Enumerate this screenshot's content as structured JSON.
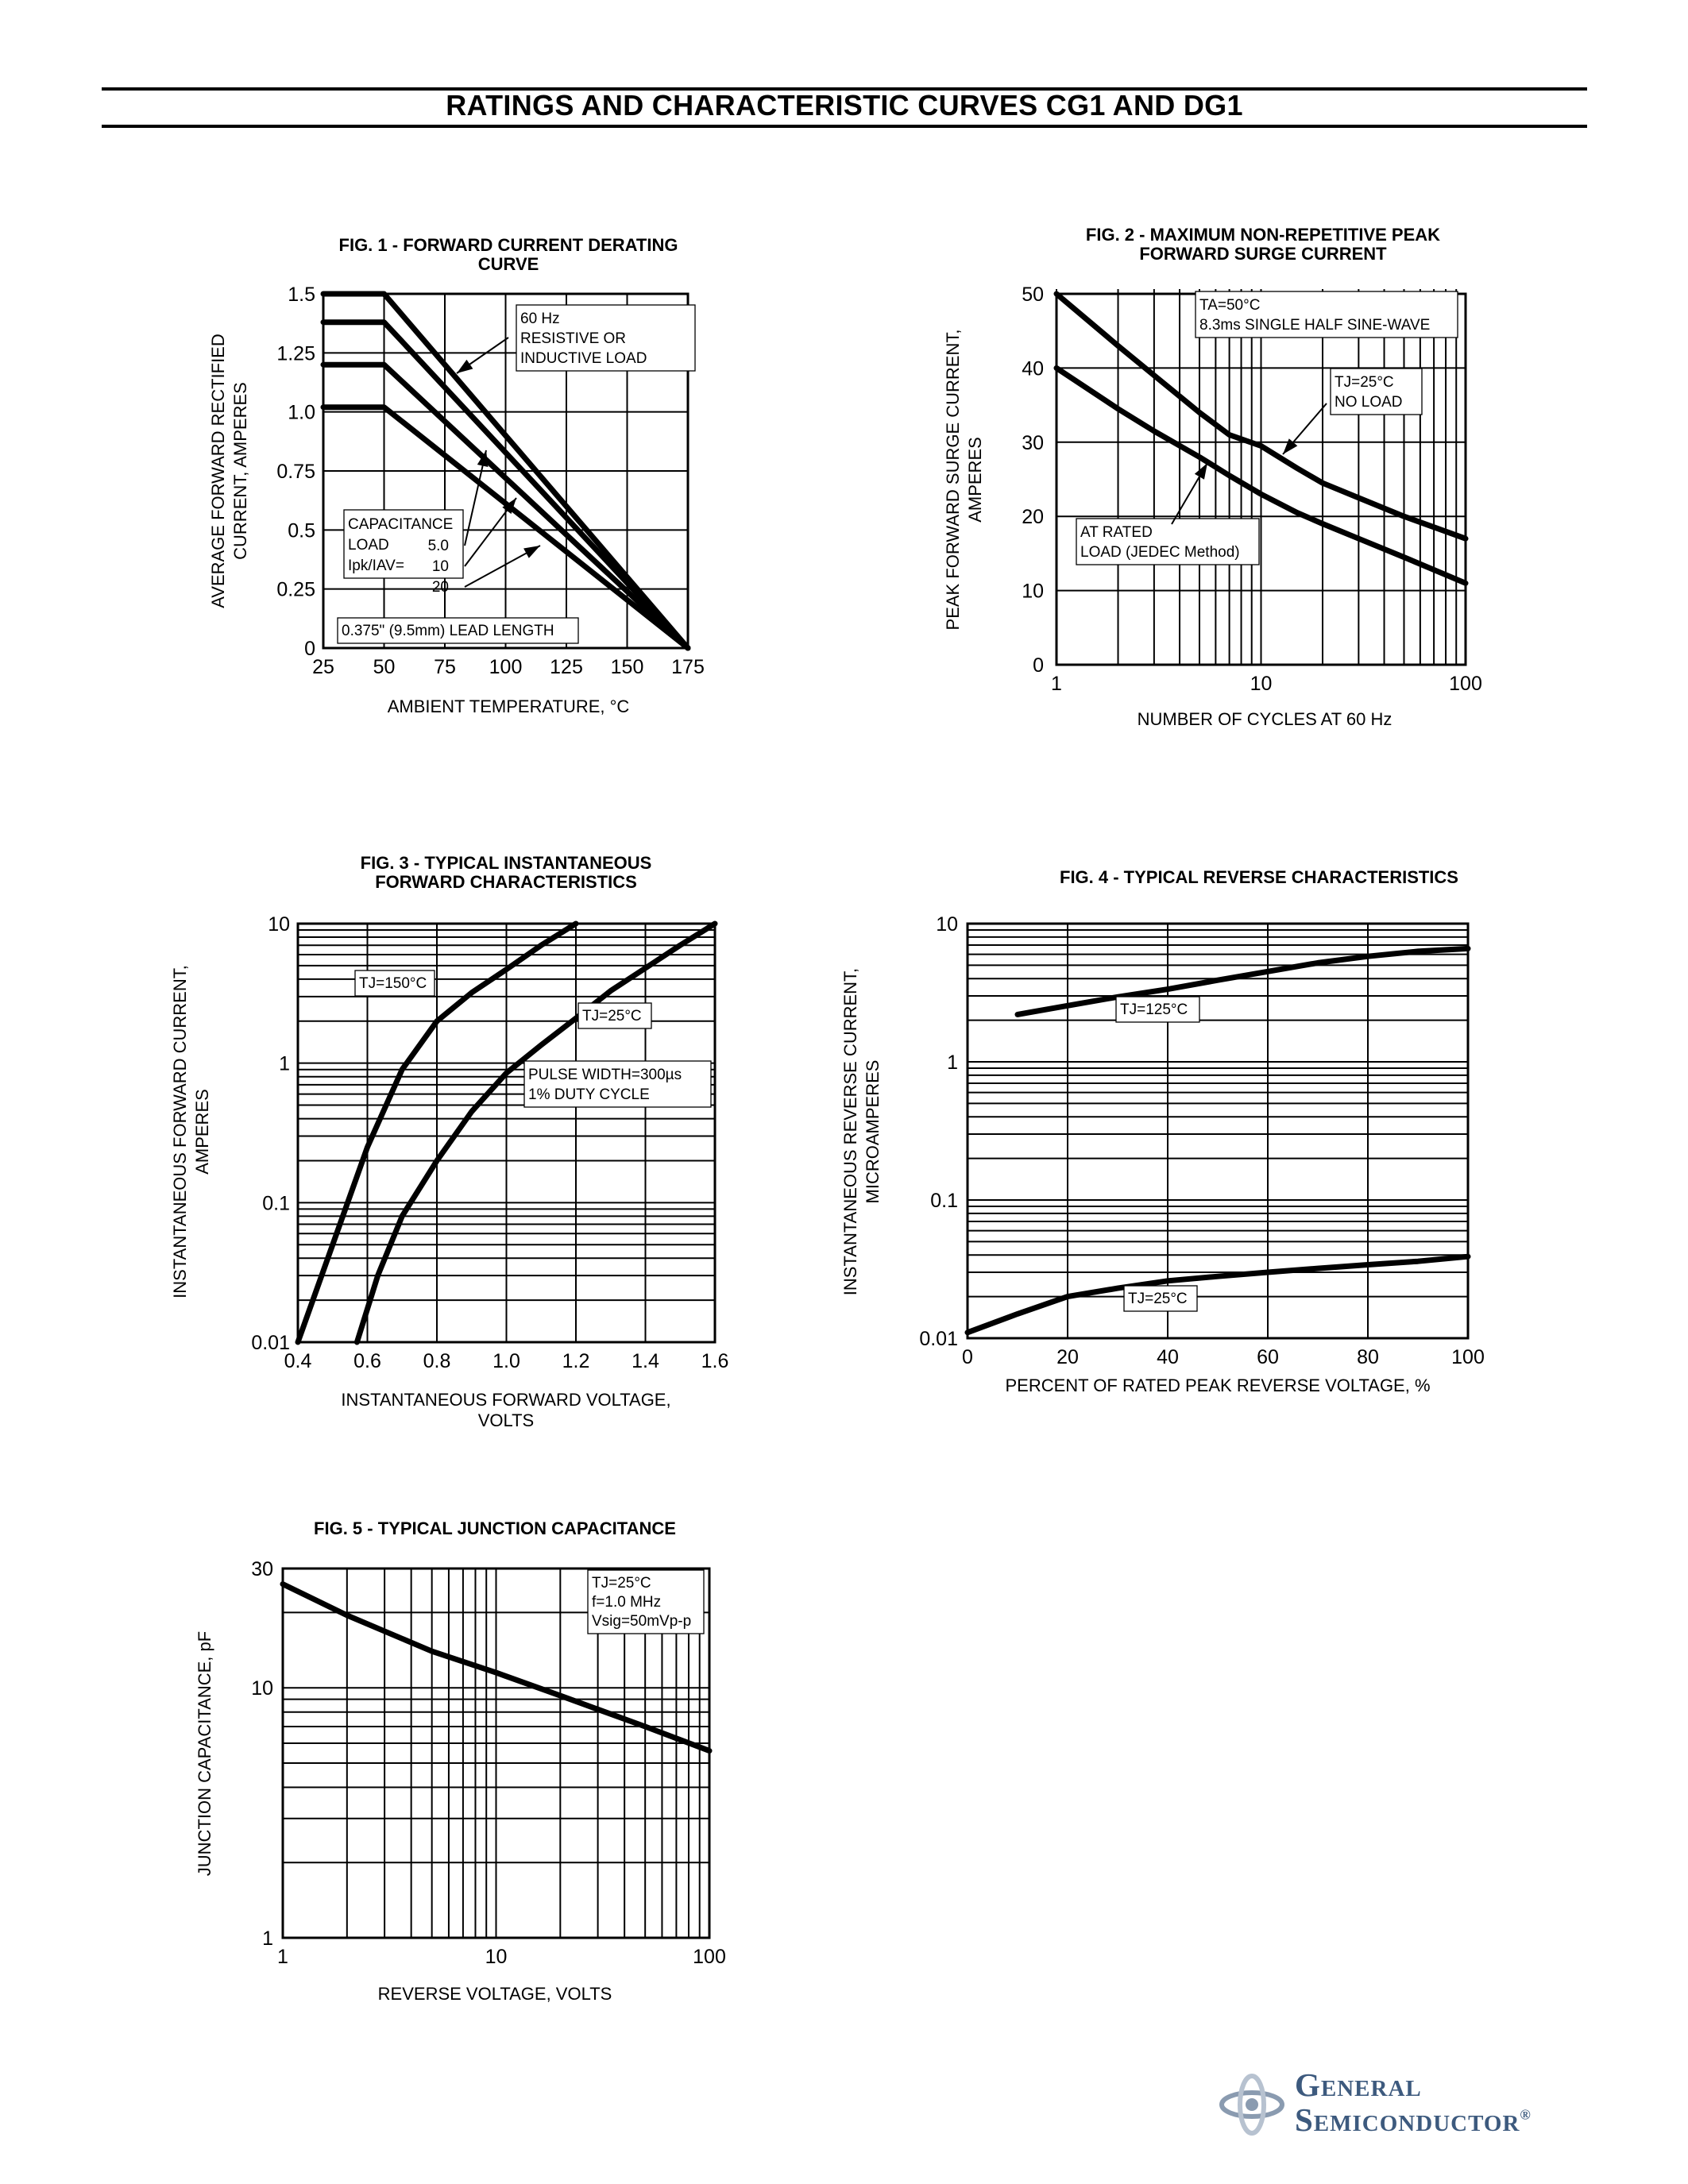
{
  "page_title": "RATINGS AND CHARACTERISTIC CURVES CG1 AND DG1",
  "brand": {
    "line1": "General",
    "line2": "Semiconductor",
    "reg": "®",
    "color": "#3d5a7e"
  },
  "chart_data": [
    {
      "id": "fig1",
      "type": "line",
      "title": [
        "FIG. 1 - FORWARD CURRENT DERATING",
        "CURVE"
      ],
      "xlabel": "AMBIENT TEMPERATURE, °C",
      "ylabel": [
        "AVERAGE FORWARD RECTIFIED",
        "CURRENT, AMPERES"
      ],
      "xlim": [
        25,
        175
      ],
      "ylim": [
        0,
        1.5
      ],
      "xscale": "linear",
      "yscale": "linear",
      "x_ticks": [
        "25",
        "50",
        "75",
        "100",
        "125",
        "150",
        "175"
      ],
      "y_ticks": [
        "0",
        "0.25",
        "0.5",
        "0.75",
        "1.0",
        "1.25",
        "1.5"
      ],
      "grid": true,
      "series": [
        {
          "x": [
            25,
            50,
            175
          ],
          "y": [
            1.5,
            1.5,
            0
          ]
        },
        {
          "x": [
            25,
            50,
            175
          ],
          "y": [
            1.38,
            1.38,
            0
          ]
        },
        {
          "x": [
            25,
            50,
            175
          ],
          "y": [
            1.2,
            1.2,
            0
          ]
        },
        {
          "x": [
            25,
            50,
            175
          ],
          "y": [
            1.02,
            1.02,
            0
          ]
        }
      ],
      "annotations": [
        {
          "lines": [
            "60 Hz",
            "RESISTIVE OR",
            "INDUCTIVE LOAD"
          ]
        },
        {
          "lines": [
            "CAPACITANCE",
            "LOAD",
            "Ipk/IAV="
          ]
        },
        {
          "lines": [
            "5.0",
            "10",
            "20"
          ]
        },
        {
          "lines": [
            "0.375\" (9.5mm) LEAD LENGTH"
          ]
        }
      ]
    },
    {
      "id": "fig2",
      "type": "line",
      "title": [
        "FIG. 2 - MAXIMUM NON-REPETITIVE PEAK",
        "FORWARD SURGE CURRENT"
      ],
      "xlabel": "NUMBER OF CYCLES AT 60 Hz",
      "ylabel": [
        "PEAK FORWARD SURGE CURRENT,",
        "AMPERES"
      ],
      "xlim": [
        1,
        100
      ],
      "ylim": [
        0,
        50
      ],
      "xscale": "log",
      "yscale": "linear",
      "x_ticks": [
        "1",
        "10",
        "100"
      ],
      "y_ticks": [
        "0",
        "10",
        "20",
        "30",
        "40",
        "50"
      ],
      "grid": true,
      "series": [
        {
          "x": [
            1,
            2,
            3,
            5,
            7,
            10,
            15,
            20,
            30,
            50,
            100
          ],
          "y": [
            50,
            43,
            39,
            34,
            31,
            29.5,
            26.5,
            24.5,
            22.5,
            20,
            17
          ]
        },
        {
          "x": [
            1,
            2,
            3,
            5,
            7,
            10,
            15,
            20,
            30,
            50,
            100
          ],
          "y": [
            40,
            34.5,
            31.5,
            28,
            25.5,
            23,
            20.5,
            19,
            17,
            14.5,
            11
          ]
        }
      ],
      "annotations": [
        {
          "lines": [
            "TA=50°C",
            "8.3ms SINGLE HALF SINE-WAVE"
          ]
        },
        {
          "lines": [
            "TJ=25°C",
            "NO LOAD"
          ]
        },
        {
          "lines": [
            "AT RATED",
            "LOAD (JEDEC Method)"
          ]
        }
      ]
    },
    {
      "id": "fig3",
      "type": "line",
      "title": [
        "FIG. 3 - TYPICAL INSTANTANEOUS",
        "FORWARD CHARACTERISTICS"
      ],
      "xlabel": [
        "INSTANTANEOUS FORWARD VOLTAGE,",
        "VOLTS"
      ],
      "ylabel": [
        "INSTANTANEOUS FORWARD CURRENT,",
        "AMPERES"
      ],
      "xlim": [
        0.4,
        1.6
      ],
      "ylim": [
        0.01,
        10
      ],
      "xscale": "linear",
      "yscale": "log",
      "x_ticks": [
        "0.4",
        "0.6",
        "0.8",
        "1.0",
        "1.2",
        "1.4",
        "1.6"
      ],
      "y_ticks": [
        "0.01",
        "0.1",
        "1",
        "10"
      ],
      "grid": true,
      "series": [
        {
          "name": "TJ=150°C",
          "x": [
            0.4,
            0.5,
            0.6,
            0.7,
            0.8,
            0.9,
            1.0,
            1.1,
            1.2
          ],
          "y": [
            0.01,
            0.05,
            0.25,
            0.9,
            2.0,
            3.2,
            4.7,
            7.0,
            10
          ]
        },
        {
          "name": "TJ=25°C",
          "x": [
            0.57,
            0.63,
            0.7,
            0.8,
            0.9,
            1.0,
            1.1,
            1.2,
            1.3,
            1.4,
            1.5,
            1.6
          ],
          "y": [
            0.01,
            0.03,
            0.08,
            0.2,
            0.45,
            0.85,
            1.35,
            2.1,
            3.3,
            4.8,
            7.0,
            10
          ]
        }
      ],
      "annotations": [
        {
          "lines": [
            "PULSE WIDTH=300µs",
            "1% DUTY CYCLE"
          ]
        }
      ]
    },
    {
      "id": "fig4",
      "type": "line",
      "title": [
        "FIG. 4 - TYPICAL REVERSE CHARACTERISTICS"
      ],
      "xlabel": "PERCENT OF RATED PEAK REVERSE VOLTAGE, %",
      "ylabel": [
        "INSTANTANEOUS REVERSE CURRENT,",
        "MICROAMPERES"
      ],
      "xlim": [
        0,
        100
      ],
      "ylim": [
        0.01,
        10
      ],
      "xscale": "linear",
      "yscale": "log",
      "x_ticks": [
        "0",
        "20",
        "40",
        "60",
        "80",
        "100"
      ],
      "y_ticks": [
        "0.01",
        "0.1",
        "1",
        "10"
      ],
      "grid": true,
      "series": [
        {
          "name": "TJ=125°C",
          "x": [
            10,
            20,
            30,
            40,
            50,
            60,
            70,
            80,
            90,
            100
          ],
          "y": [
            2.2,
            2.55,
            2.95,
            3.35,
            3.9,
            4.5,
            5.2,
            5.8,
            6.3,
            6.6
          ]
        },
        {
          "name": "TJ=25°C",
          "x": [
            0,
            10,
            20,
            30,
            40,
            50,
            60,
            70,
            80,
            90,
            100
          ],
          "y": [
            0.011,
            0.015,
            0.02,
            0.023,
            0.026,
            0.028,
            0.03,
            0.032,
            0.034,
            0.036,
            0.039
          ]
        }
      ]
    },
    {
      "id": "fig5",
      "type": "line",
      "title": [
        "FIG. 5 - TYPICAL JUNCTION CAPACITANCE"
      ],
      "xlabel": "REVERSE VOLTAGE, VOLTS",
      "ylabel": "JUNCTION CAPACITANCE, pF",
      "xlim": [
        1,
        100
      ],
      "ylim": [
        1,
        30
      ],
      "xscale": "log",
      "yscale": "log",
      "x_ticks": [
        "1",
        "10",
        "100"
      ],
      "y_ticks": [
        "1",
        "10",
        "30"
      ],
      "grid": true,
      "series": [
        {
          "x": [
            1,
            2,
            5,
            10,
            20,
            50,
            100
          ],
          "y": [
            26,
            19.5,
            14,
            11.5,
            9.3,
            7.0,
            5.6
          ]
        }
      ],
      "annotations": [
        {
          "lines": [
            "TJ=25°C",
            "f=1.0 MHz",
            "Vsig=50mVp-p"
          ]
        }
      ]
    }
  ]
}
